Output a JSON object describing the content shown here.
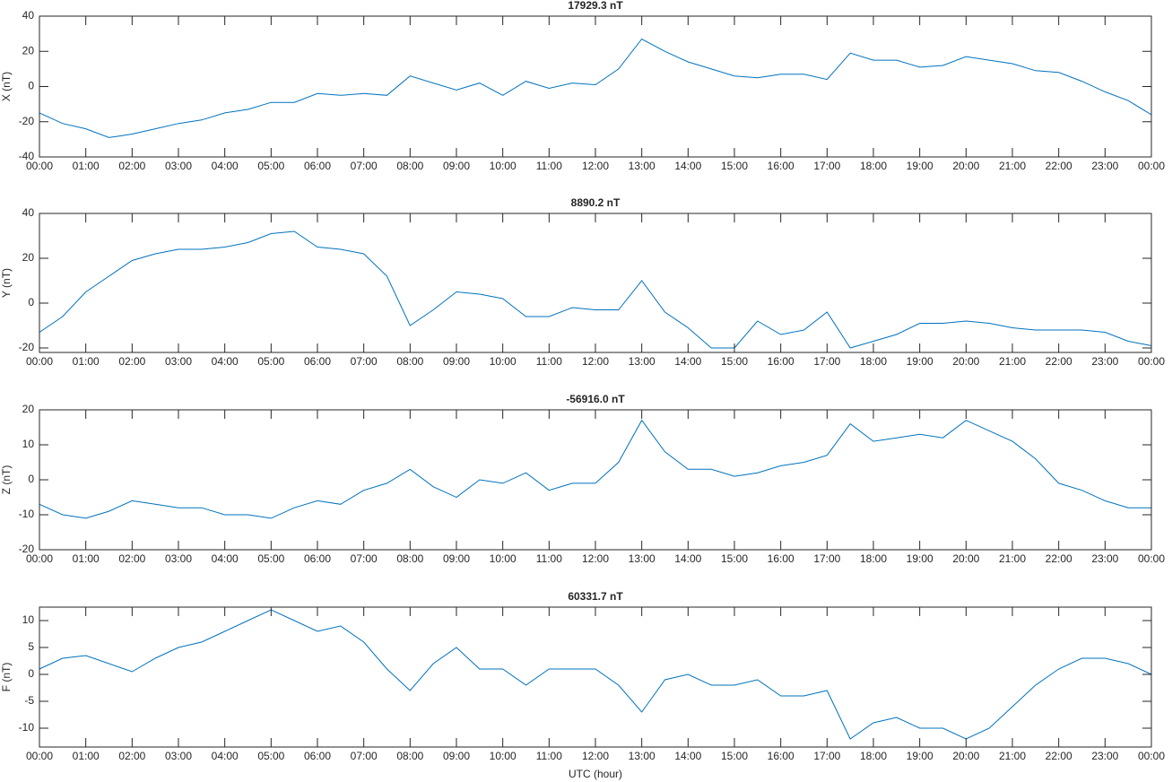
{
  "chart_data": [
    {
      "type": "line",
      "title": "17929.3 nT",
      "y_label": "X (nT)",
      "x": [
        0,
        0.5,
        1,
        1.5,
        2,
        2.5,
        3,
        3.5,
        4,
        4.5,
        5,
        5.5,
        6,
        6.5,
        7,
        7.5,
        8,
        8.5,
        9,
        9.5,
        10,
        10.5,
        11,
        11.5,
        12,
        12.5,
        13,
        13.5,
        14,
        14.5,
        15,
        15.5,
        16,
        16.5,
        17,
        17.5,
        18,
        18.5,
        19,
        19.5,
        20,
        20.5,
        21,
        21.5,
        22,
        22.5,
        23,
        23.5,
        24
      ],
      "series": [
        {
          "name": "X",
          "color": "#0072bd",
          "values": [
            -15,
            -21,
            -24,
            -29,
            -27,
            -24,
            -21,
            -19,
            -15,
            -13,
            -9,
            -9,
            -4,
            -5,
            -4,
            -5,
            6,
            2,
            -2,
            2,
            -5,
            3,
            -1,
            2,
            1,
            10,
            27,
            20,
            14,
            10,
            6,
            5,
            7,
            7,
            4,
            19,
            15,
            15,
            11,
            12,
            17,
            15,
            13,
            9,
            8,
            3,
            -3,
            -8,
            -16
          ]
        }
      ],
      "xlim": [
        0,
        24
      ],
      "xticks": [
        {
          "value": 0,
          "label": "00:00"
        },
        {
          "value": 1,
          "label": "01:00"
        },
        {
          "value": 2,
          "label": "02:00"
        },
        {
          "value": 3,
          "label": "03:00"
        },
        {
          "value": 4,
          "label": "04:00"
        },
        {
          "value": 5,
          "label": "05:00"
        },
        {
          "value": 6,
          "label": "06:00"
        },
        {
          "value": 7,
          "label": "07:00"
        },
        {
          "value": 8,
          "label": "08:00"
        },
        {
          "value": 9,
          "label": "09:00"
        },
        {
          "value": 10,
          "label": "10:00"
        },
        {
          "value": 11,
          "label": "11:00"
        },
        {
          "value": 12,
          "label": "12:00"
        },
        {
          "value": 13,
          "label": "13:00"
        },
        {
          "value": 14,
          "label": "14:00"
        },
        {
          "value": 15,
          "label": "15:00"
        },
        {
          "value": 16,
          "label": "16:00"
        },
        {
          "value": 17,
          "label": "17:00"
        },
        {
          "value": 18,
          "label": "18:00"
        },
        {
          "value": 19,
          "label": "19:00"
        },
        {
          "value": 20,
          "label": "20:00"
        },
        {
          "value": 21,
          "label": "21:00"
        },
        {
          "value": 22,
          "label": "22:00"
        },
        {
          "value": 23,
          "label": "23:00"
        },
        {
          "value": 24,
          "label": "00:00"
        }
      ],
      "ylim": [
        -40,
        40
      ],
      "yticks": [
        -40,
        -20,
        0,
        20,
        40
      ]
    },
    {
      "type": "line",
      "title": "8890.2 nT",
      "y_label": "Y (nT)",
      "x": [
        0,
        0.5,
        1,
        1.5,
        2,
        2.5,
        3,
        3.5,
        4,
        4.5,
        5,
        5.5,
        6,
        6.5,
        7,
        7.5,
        8,
        8.5,
        9,
        9.5,
        10,
        10.5,
        11,
        11.5,
        12,
        12.5,
        13,
        13.5,
        14,
        14.5,
        15,
        15.5,
        16,
        16.5,
        17,
        17.5,
        18,
        18.5,
        19,
        19.5,
        20,
        20.5,
        21,
        21.5,
        22,
        22.5,
        23,
        23.5,
        24
      ],
      "series": [
        {
          "name": "Y",
          "color": "#0072bd",
          "values": [
            -13,
            -6,
            5,
            12,
            19,
            22,
            24,
            24,
            25,
            27,
            31,
            32,
            25,
            24,
            22,
            12,
            -10,
            -3,
            5,
            4,
            2,
            -6,
            -6,
            -2,
            -3,
            -3,
            10,
            -4,
            -11,
            -20,
            -20,
            -8,
            -14,
            -12,
            -4,
            -20,
            -17,
            -14,
            -9,
            -9,
            -8,
            -9,
            -11,
            -12,
            -12,
            -12,
            -13,
            -17,
            -19
          ]
        }
      ],
      "xlim": [
        0,
        24
      ],
      "xticks": [
        {
          "value": 0,
          "label": "00:00"
        },
        {
          "value": 1,
          "label": "01:00"
        },
        {
          "value": 2,
          "label": "02:00"
        },
        {
          "value": 3,
          "label": "03:00"
        },
        {
          "value": 4,
          "label": "04:00"
        },
        {
          "value": 5,
          "label": "05:00"
        },
        {
          "value": 6,
          "label": "06:00"
        },
        {
          "value": 7,
          "label": "07:00"
        },
        {
          "value": 8,
          "label": "08:00"
        },
        {
          "value": 9,
          "label": "09:00"
        },
        {
          "value": 10,
          "label": "10:00"
        },
        {
          "value": 11,
          "label": "11:00"
        },
        {
          "value": 12,
          "label": "12:00"
        },
        {
          "value": 13,
          "label": "13:00"
        },
        {
          "value": 14,
          "label": "14:00"
        },
        {
          "value": 15,
          "label": "15:00"
        },
        {
          "value": 16,
          "label": "16:00"
        },
        {
          "value": 17,
          "label": "17:00"
        },
        {
          "value": 18,
          "label": "18:00"
        },
        {
          "value": 19,
          "label": "19:00"
        },
        {
          "value": 20,
          "label": "20:00"
        },
        {
          "value": 21,
          "label": "21:00"
        },
        {
          "value": 22,
          "label": "22:00"
        },
        {
          "value": 23,
          "label": "23:00"
        },
        {
          "value": 24,
          "label": "00:00"
        }
      ],
      "ylim": [
        -22,
        40
      ],
      "yticks": [
        -20,
        0,
        20,
        40
      ]
    },
    {
      "type": "line",
      "title": "-56916.0 nT",
      "y_label": "Z (nT)",
      "x": [
        0,
        0.5,
        1,
        1.5,
        2,
        2.5,
        3,
        3.5,
        4,
        4.5,
        5,
        5.5,
        6,
        6.5,
        7,
        7.5,
        8,
        8.5,
        9,
        9.5,
        10,
        10.5,
        11,
        11.5,
        12,
        12.5,
        13,
        13.5,
        14,
        14.5,
        15,
        15.5,
        16,
        16.5,
        17,
        17.5,
        18,
        18.5,
        19,
        19.5,
        20,
        20.5,
        21,
        21.5,
        22,
        22.5,
        23,
        23.5,
        24
      ],
      "series": [
        {
          "name": "Z",
          "color": "#0072bd",
          "values": [
            -7,
            -10,
            -11,
            -9,
            -6,
            -7,
            -8,
            -8,
            -10,
            -10,
            -11,
            -8,
            -6,
            -7,
            -3,
            -1,
            3,
            -2,
            -5,
            0,
            -1,
            2,
            -3,
            -1,
            -1,
            5,
            17,
            8,
            3,
            3,
            1,
            2,
            4,
            5,
            7,
            16,
            11,
            12,
            13,
            12,
            17,
            14,
            11,
            6,
            -1,
            -3,
            -6,
            -8,
            -8
          ]
        }
      ],
      "xlim": [
        0,
        24
      ],
      "xticks": [
        {
          "value": 0,
          "label": "00:00"
        },
        {
          "value": 1,
          "label": "01:00"
        },
        {
          "value": 2,
          "label": "02:00"
        },
        {
          "value": 3,
          "label": "03:00"
        },
        {
          "value": 4,
          "label": "04:00"
        },
        {
          "value": 5,
          "label": "05:00"
        },
        {
          "value": 6,
          "label": "06:00"
        },
        {
          "value": 7,
          "label": "07:00"
        },
        {
          "value": 8,
          "label": "08:00"
        },
        {
          "value": 9,
          "label": "09:00"
        },
        {
          "value": 10,
          "label": "10:00"
        },
        {
          "value": 11,
          "label": "11:00"
        },
        {
          "value": 12,
          "label": "12:00"
        },
        {
          "value": 13,
          "label": "13:00"
        },
        {
          "value": 14,
          "label": "14:00"
        },
        {
          "value": 15,
          "label": "15:00"
        },
        {
          "value": 16,
          "label": "16:00"
        },
        {
          "value": 17,
          "label": "17:00"
        },
        {
          "value": 18,
          "label": "18:00"
        },
        {
          "value": 19,
          "label": "19:00"
        },
        {
          "value": 20,
          "label": "20:00"
        },
        {
          "value": 21,
          "label": "21:00"
        },
        {
          "value": 22,
          "label": "22:00"
        },
        {
          "value": 23,
          "label": "23:00"
        },
        {
          "value": 24,
          "label": "00:00"
        }
      ],
      "ylim": [
        -20,
        20
      ],
      "yticks": [
        -20,
        -10,
        0,
        10,
        20
      ]
    },
    {
      "type": "line",
      "title": "60331.7 nT",
      "y_label": "F (nT)",
      "x_label": "UTC (hour)",
      "x": [
        0,
        0.5,
        1,
        1.5,
        2,
        2.5,
        3,
        3.5,
        4,
        4.5,
        5,
        5.5,
        6,
        6.5,
        7,
        7.5,
        8,
        8.5,
        9,
        9.5,
        10,
        10.5,
        11,
        11.5,
        12,
        12.5,
        13,
        13.5,
        14,
        14.5,
        15,
        15.5,
        16,
        16.5,
        17,
        17.5,
        18,
        18.5,
        19,
        19.5,
        20,
        20.5,
        21,
        21.5,
        22,
        22.5,
        23,
        23.5,
        24
      ],
      "series": [
        {
          "name": "F",
          "color": "#0072bd",
          "values": [
            1,
            3,
            3.5,
            2,
            0.5,
            3,
            5,
            6,
            8,
            10,
            12,
            10,
            8,
            9,
            6,
            1,
            -3,
            2,
            5,
            1,
            1,
            -2,
            1,
            1,
            1,
            -2,
            -7,
            -1,
            0,
            -2,
            -2,
            -1,
            -4,
            -4,
            -3,
            -12,
            -9,
            -8,
            -10,
            -10,
            -12,
            -10,
            -6,
            -2,
            1,
            3,
            3,
            2,
            0
          ]
        }
      ],
      "xlim": [
        0,
        24
      ],
      "xticks": [
        {
          "value": 0,
          "label": "00:00"
        },
        {
          "value": 1,
          "label": "01:00"
        },
        {
          "value": 2,
          "label": "02:00"
        },
        {
          "value": 3,
          "label": "03:00"
        },
        {
          "value": 4,
          "label": "04:00"
        },
        {
          "value": 5,
          "label": "05:00"
        },
        {
          "value": 6,
          "label": "06:00"
        },
        {
          "value": 7,
          "label": "07:00"
        },
        {
          "value": 8,
          "label": "08:00"
        },
        {
          "value": 9,
          "label": "09:00"
        },
        {
          "value": 10,
          "label": "10:00"
        },
        {
          "value": 11,
          "label": "11:00"
        },
        {
          "value": 12,
          "label": "12:00"
        },
        {
          "value": 13,
          "label": "13:00"
        },
        {
          "value": 14,
          "label": "14:00"
        },
        {
          "value": 15,
          "label": "15:00"
        },
        {
          "value": 16,
          "label": "16:00"
        },
        {
          "value": 17,
          "label": "17:00"
        },
        {
          "value": 18,
          "label": "18:00"
        },
        {
          "value": 19,
          "label": "19:00"
        },
        {
          "value": 20,
          "label": "20:00"
        },
        {
          "value": 21,
          "label": "21:00"
        },
        {
          "value": 22,
          "label": "22:00"
        },
        {
          "value": 23,
          "label": "23:00"
        },
        {
          "value": 24,
          "label": "00:00"
        }
      ],
      "ylim": [
        -13.5,
        12.5
      ],
      "yticks": [
        -10,
        -5,
        0,
        5,
        10
      ]
    }
  ]
}
